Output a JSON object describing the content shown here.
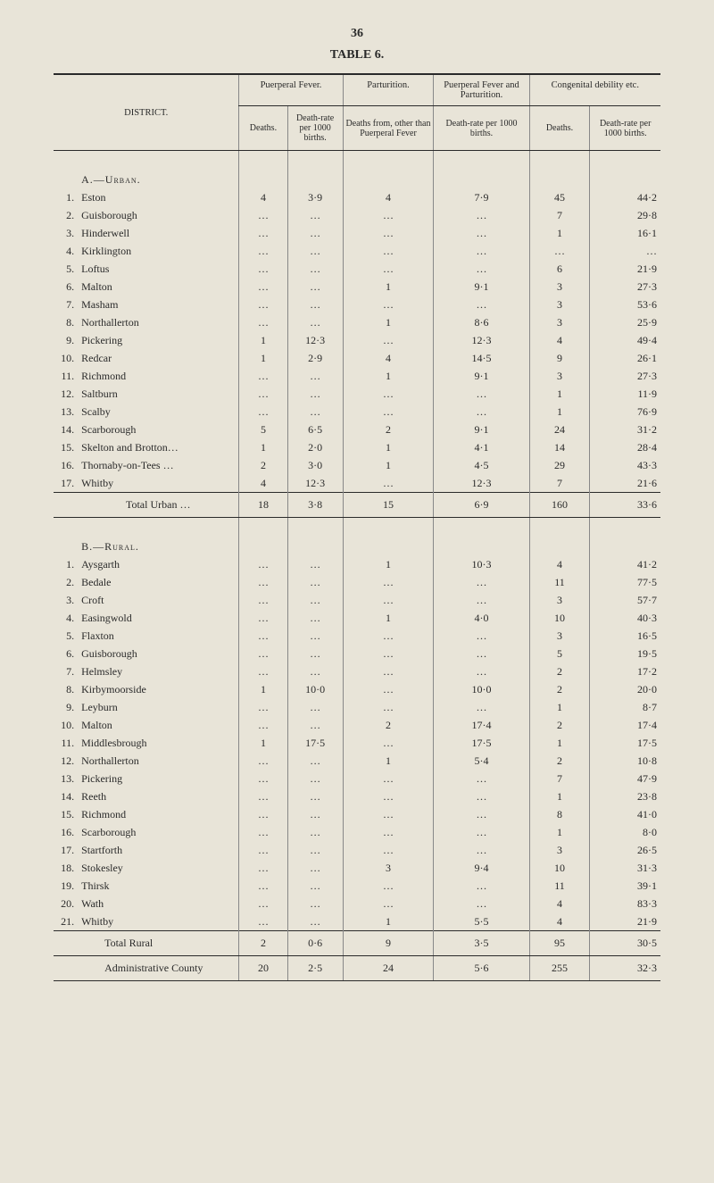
{
  "page_number": "36",
  "table_title": "TABLE 6.",
  "district_label": "DISTRICT.",
  "headers": {
    "puerperal_fever": "Puerperal Fever.",
    "parturition": "Parturition.",
    "puerperal_fever_parturition": "Puerperal Fever and Parturition.",
    "congenital_debility": "Congenital debility etc.",
    "deaths": "Deaths.",
    "death_rate_1000_births": "Death-rate per 1000 births.",
    "deaths_from_other": "Deaths from, other than Puerperal Fever",
    "death_rate_1000_births2": "Death-rate per 1000 births."
  },
  "section_a": "A.—Urban.",
  "section_b": "B.—Rural.",
  "urban": [
    {
      "n": "1.",
      "name": "Eston",
      "d": "4",
      "dr": "3·9",
      "p": "4",
      "pf": "7·9",
      "cd": "45",
      "cdr": "44·2"
    },
    {
      "n": "2.",
      "name": "Guisborough",
      "d": "…",
      "dr": "…",
      "p": "…",
      "pf": "…",
      "cd": "7",
      "cdr": "29·8"
    },
    {
      "n": "3.",
      "name": "Hinderwell",
      "d": "…",
      "dr": "…",
      "p": "…",
      "pf": "…",
      "cd": "1",
      "cdr": "16·1"
    },
    {
      "n": "4.",
      "name": "Kirklington",
      "d": "…",
      "dr": "…",
      "p": "…",
      "pf": "…",
      "cd": "…",
      "cdr": "…"
    },
    {
      "n": "5.",
      "name": "Loftus",
      "d": "…",
      "dr": "…",
      "p": "…",
      "pf": "…",
      "cd": "6",
      "cdr": "21·9"
    },
    {
      "n": "6.",
      "name": "Malton",
      "d": "…",
      "dr": "…",
      "p": "1",
      "pf": "9·1",
      "cd": "3",
      "cdr": "27·3"
    },
    {
      "n": "7.",
      "name": "Masham",
      "d": "…",
      "dr": "…",
      "p": "…",
      "pf": "…",
      "cd": "3",
      "cdr": "53·6"
    },
    {
      "n": "8.",
      "name": "Northallerton",
      "d": "…",
      "dr": "…",
      "p": "1",
      "pf": "8·6",
      "cd": "3",
      "cdr": "25·9"
    },
    {
      "n": "9.",
      "name": "Pickering",
      "d": "1",
      "dr": "12·3",
      "p": "…",
      "pf": "12·3",
      "cd": "4",
      "cdr": "49·4"
    },
    {
      "n": "10.",
      "name": "Redcar",
      "d": "1",
      "dr": "2·9",
      "p": "4",
      "pf": "14·5",
      "cd": "9",
      "cdr": "26·1"
    },
    {
      "n": "11.",
      "name": "Richmond",
      "d": "…",
      "dr": "…",
      "p": "1",
      "pf": "9·1",
      "cd": "3",
      "cdr": "27·3"
    },
    {
      "n": "12.",
      "name": "Saltburn",
      "d": "…",
      "dr": "…",
      "p": "…",
      "pf": "…",
      "cd": "1",
      "cdr": "11·9"
    },
    {
      "n": "13.",
      "name": "Scalby",
      "d": "…",
      "dr": "…",
      "p": "…",
      "pf": "…",
      "cd": "1",
      "cdr": "76·9"
    },
    {
      "n": "14.",
      "name": "Scarborough",
      "d": "5",
      "dr": "6·5",
      "p": "2",
      "pf": "9·1",
      "cd": "24",
      "cdr": "31·2"
    },
    {
      "n": "15.",
      "name": "Skelton and Brotton…",
      "d": "1",
      "dr": "2·0",
      "p": "1",
      "pf": "4·1",
      "cd": "14",
      "cdr": "28·4"
    },
    {
      "n": "16.",
      "name": "Thornaby-on-Tees …",
      "d": "2",
      "dr": "3·0",
      "p": "1",
      "pf": "4·5",
      "cd": "29",
      "cdr": "43·3"
    },
    {
      "n": "17.",
      "name": "Whitby",
      "d": "4",
      "dr": "12·3",
      "p": "…",
      "pf": "12·3",
      "cd": "7",
      "cdr": "21·6"
    }
  ],
  "urban_total": {
    "label": "Total Urban  …",
    "d": "18",
    "dr": "3·8",
    "p": "15",
    "pf": "6·9",
    "cd": "160",
    "cdr": "33·6"
  },
  "rural": [
    {
      "n": "1.",
      "name": "Aysgarth",
      "d": "…",
      "dr": "…",
      "p": "1",
      "pf": "10·3",
      "cd": "4",
      "cdr": "41·2"
    },
    {
      "n": "2.",
      "name": "Bedale",
      "d": "…",
      "dr": "…",
      "p": "…",
      "pf": "…",
      "cd": "11",
      "cdr": "77·5"
    },
    {
      "n": "3.",
      "name": "Croft",
      "d": "…",
      "dr": "…",
      "p": "…",
      "pf": "…",
      "cd": "3",
      "cdr": "57·7"
    },
    {
      "n": "4.",
      "name": "Easingwold",
      "d": "…",
      "dr": "…",
      "p": "1",
      "pf": "4·0",
      "cd": "10",
      "cdr": "40·3"
    },
    {
      "n": "5.",
      "name": "Flaxton",
      "d": "…",
      "dr": "…",
      "p": "…",
      "pf": "…",
      "cd": "3",
      "cdr": "16·5"
    },
    {
      "n": "6.",
      "name": "Guisborough",
      "d": "…",
      "dr": "…",
      "p": "…",
      "pf": "…",
      "cd": "5",
      "cdr": "19·5"
    },
    {
      "n": "7.",
      "name": "Helmsley",
      "d": "…",
      "dr": "…",
      "p": "…",
      "pf": "…",
      "cd": "2",
      "cdr": "17·2"
    },
    {
      "n": "8.",
      "name": "Kirbymoorside",
      "d": "1",
      "dr": "10·0",
      "p": "…",
      "pf": "10·0",
      "cd": "2",
      "cdr": "20·0"
    },
    {
      "n": "9.",
      "name": "Leyburn",
      "d": "…",
      "dr": "…",
      "p": "…",
      "pf": "…",
      "cd": "1",
      "cdr": "8·7"
    },
    {
      "n": "10.",
      "name": "Malton",
      "d": "…",
      "dr": "…",
      "p": "2",
      "pf": "17·4",
      "cd": "2",
      "cdr": "17·4"
    },
    {
      "n": "11.",
      "name": "Middlesbrough",
      "d": "1",
      "dr": "17·5",
      "p": "…",
      "pf": "17·5",
      "cd": "1",
      "cdr": "17·5"
    },
    {
      "n": "12.",
      "name": "Northallerton",
      "d": "…",
      "dr": "…",
      "p": "1",
      "pf": "5·4",
      "cd": "2",
      "cdr": "10·8"
    },
    {
      "n": "13.",
      "name": "Pickering",
      "d": "…",
      "dr": "…",
      "p": "…",
      "pf": "…",
      "cd": "7",
      "cdr": "47·9"
    },
    {
      "n": "14.",
      "name": "Reeth",
      "d": "…",
      "dr": "…",
      "p": "…",
      "pf": "…",
      "cd": "1",
      "cdr": "23·8"
    },
    {
      "n": "15.",
      "name": "Richmond",
      "d": "…",
      "dr": "…",
      "p": "…",
      "pf": "…",
      "cd": "8",
      "cdr": "41·0"
    },
    {
      "n": "16.",
      "name": "Scarborough",
      "d": "…",
      "dr": "…",
      "p": "…",
      "pf": "…",
      "cd": "1",
      "cdr": "8·0"
    },
    {
      "n": "17.",
      "name": "Startforth",
      "d": "…",
      "dr": "…",
      "p": "…",
      "pf": "…",
      "cd": "3",
      "cdr": "26·5"
    },
    {
      "n": "18.",
      "name": "Stokesley",
      "d": "…",
      "dr": "…",
      "p": "3",
      "pf": "9·4",
      "cd": "10",
      "cdr": "31·3"
    },
    {
      "n": "19.",
      "name": "Thirsk",
      "d": "…",
      "dr": "…",
      "p": "…",
      "pf": "…",
      "cd": "11",
      "cdr": "39·1"
    },
    {
      "n": "20.",
      "name": "Wath",
      "d": "…",
      "dr": "…",
      "p": "…",
      "pf": "…",
      "cd": "4",
      "cdr": "83·3"
    },
    {
      "n": "21.",
      "name": "Whitby",
      "d": "…",
      "dr": "…",
      "p": "1",
      "pf": "5·5",
      "cd": "4",
      "cdr": "21·9"
    }
  ],
  "rural_total": {
    "label": "Total Rural",
    "d": "2",
    "dr": "0·6",
    "p": "9",
    "pf": "3·5",
    "cd": "95",
    "cdr": "30·5"
  },
  "admin_county": {
    "label": "Administrative County",
    "d": "20",
    "dr": "2·5",
    "p": "24",
    "pf": "5·6",
    "cd": "255",
    "cdr": "32·3"
  }
}
